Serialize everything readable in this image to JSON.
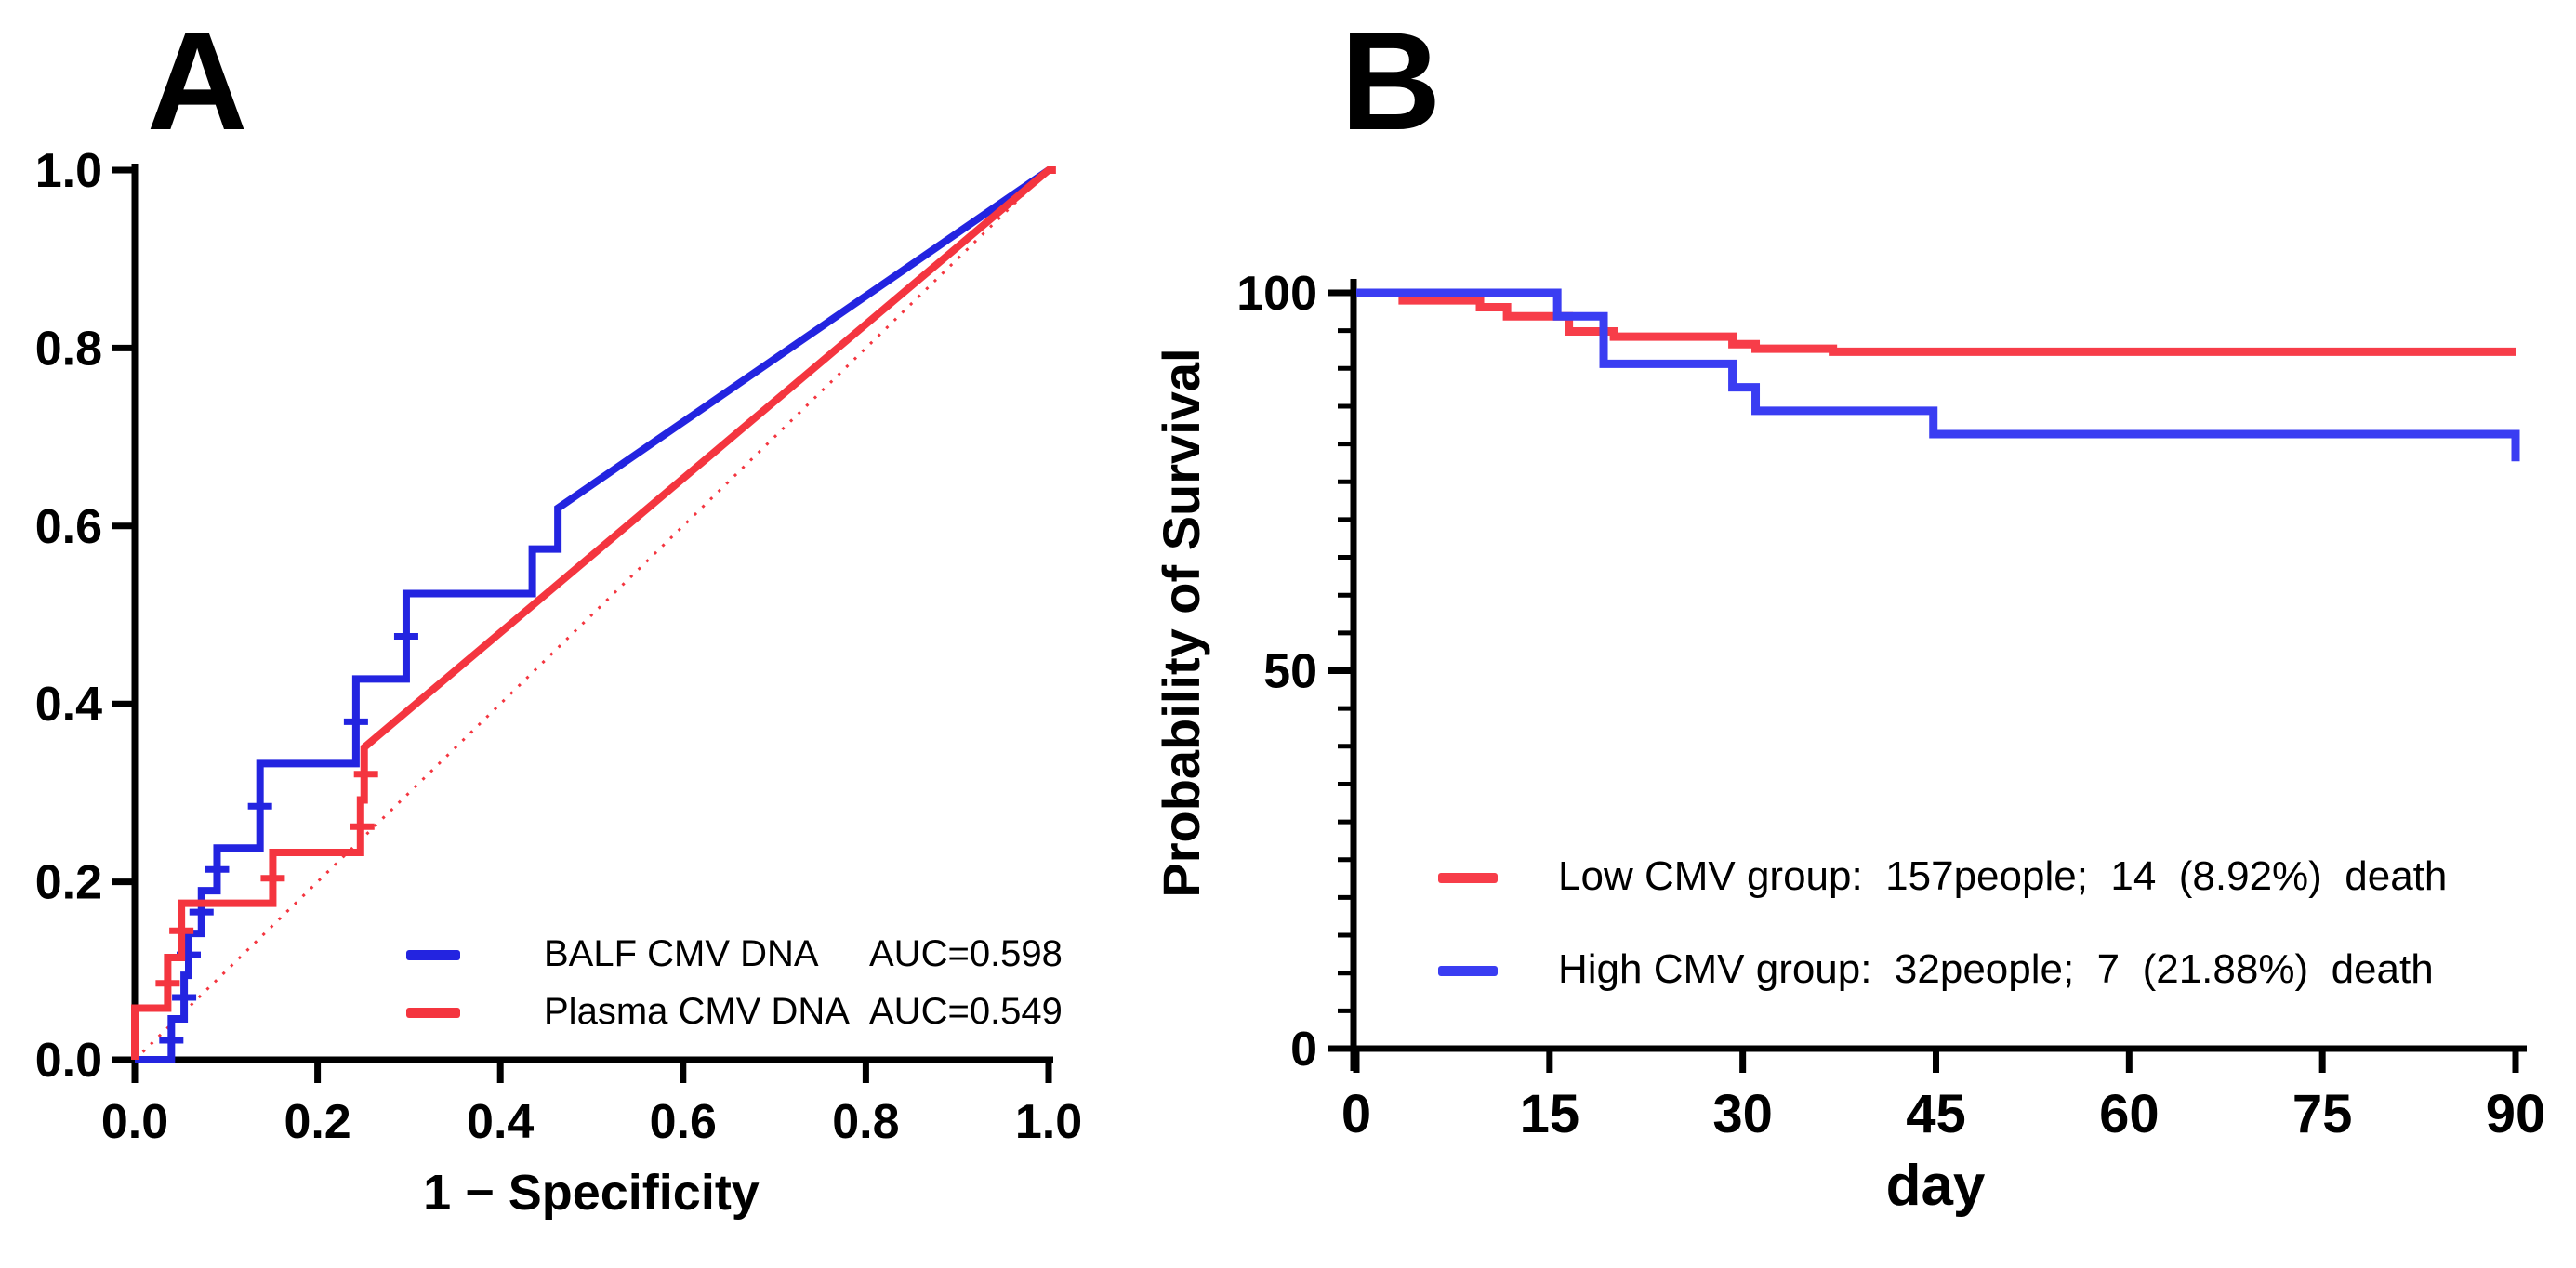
{
  "figure": {
    "background": "#ffffff"
  },
  "panel_a": {
    "letter": "A",
    "x_axis_title": "1 − Specificity",
    "x_tick_labels": [
      "0.0",
      "0.2",
      "0.4",
      "0.6",
      "0.8",
      "1.0"
    ],
    "y_tick_labels": [
      "0.0",
      "0.2",
      "0.4",
      "0.6",
      "0.8",
      "1.0"
    ],
    "legend": {
      "row1": {
        "label": "BALF CMV DNA",
        "auc": "AUC=0.598"
      },
      "row2": {
        "label": "Plasma CMV DNA",
        "auc": "AUC=0.549"
      }
    },
    "colors": {
      "balf": "#2324E0",
      "plasma": "#F4353F",
      "reference": "#F4353F"
    }
  },
  "panel_b": {
    "letter": "B",
    "x_axis_title": "day",
    "y_axis_title": "Probability of Survival",
    "x_tick_labels": [
      "0",
      "15",
      "30",
      "45",
      "60",
      "75",
      "90"
    ],
    "y_tick_labels": [
      "100",
      "50",
      "0"
    ],
    "legend": {
      "row1": "Low CMV group:  157people;  14  (8.92%)  death",
      "row2": "High CMV group:  32people;  7  (21.88%)  death"
    },
    "colors": {
      "low": "#F73D49",
      "high": "#3A3DF2"
    }
  },
  "chart_data": [
    {
      "type": "line",
      "panel": "A",
      "description": "ROC curves of BALF and Plasma CMV DNA",
      "xlabel": "1 − Specificity",
      "ylabel": "",
      "xlim": [
        0,
        1
      ],
      "ylim": [
        0,
        1
      ],
      "x_ticks": [
        0,
        0.2,
        0.4,
        0.6,
        0.8,
        1
      ],
      "y_ticks": [
        0,
        0.2,
        0.4,
        0.6,
        0.8,
        1
      ],
      "grid": false,
      "legend_position": "lower right",
      "series": [
        {
          "name": "BALF CMV DNA",
          "auc": 0.598,
          "color": "#2324E0",
          "style": "solid",
          "points": [
            [
              0,
              0
            ],
            [
              0.04,
              0
            ],
            [
              0.04,
              0.046
            ],
            [
              0.054,
              0.046
            ],
            [
              0.054,
              0.095
            ],
            [
              0.059,
              0.095
            ],
            [
              0.059,
              0.142
            ],
            [
              0.073,
              0.142
            ],
            [
              0.073,
              0.19
            ],
            [
              0.09,
              0.19
            ],
            [
              0.09,
              0.238
            ],
            [
              0.137,
              0.238
            ],
            [
              0.137,
              0.333
            ],
            [
              0.242,
              0.333
            ],
            [
              0.242,
              0.428
            ],
            [
              0.297,
              0.428
            ],
            [
              0.297,
              0.524
            ],
            [
              0.435,
              0.524
            ],
            [
              0.435,
              0.574
            ],
            [
              0.463,
              0.574
            ],
            [
              0.463,
              0.62
            ],
            [
              1,
              1
            ]
          ],
          "tie_marks": [
            [
              0.04,
              0.022
            ],
            [
              0.054,
              0.07
            ],
            [
              0.059,
              0.118
            ],
            [
              0.073,
              0.166
            ],
            [
              0.09,
              0.214
            ],
            [
              0.137,
              0.285
            ],
            [
              0.242,
              0.38
            ],
            [
              0.297,
              0.476
            ]
          ]
        },
        {
          "name": "Plasma CMV DNA",
          "auc": 0.549,
          "color": "#F4353F",
          "style": "solid",
          "points": [
            [
              0,
              0
            ],
            [
              0,
              0.058
            ],
            [
              0.036,
              0.058
            ],
            [
              0.036,
              0.115
            ],
            [
              0.051,
              0.115
            ],
            [
              0.051,
              0.176
            ],
            [
              0.151,
              0.176
            ],
            [
              0.151,
              0.233
            ],
            [
              0.247,
              0.233
            ],
            [
              0.247,
              0.292
            ],
            [
              0.251,
              0.292
            ],
            [
              0.251,
              0.351
            ],
            [
              0.259,
              0.358
            ],
            [
              1,
              1
            ],
            [
              1.008,
              1
            ]
          ],
          "tie_marks": [
            [
              0.036,
              0.086
            ],
            [
              0.051,
              0.145
            ],
            [
              0.151,
              0.204
            ],
            [
              0.249,
              0.262
            ],
            [
              0.253,
              0.321
            ]
          ]
        },
        {
          "name": "reference line",
          "color": "#F4353F",
          "style": "dotted",
          "points": [
            [
              0,
              0
            ],
            [
              1,
              1
            ]
          ],
          "tie_marks": []
        }
      ]
    },
    {
      "type": "line",
      "panel": "B",
      "description": "Kaplan-Meier survival by CMV group",
      "xlabel": "day",
      "ylabel": "Probability of Survival",
      "xlim": [
        0,
        90
      ],
      "ylim": [
        0,
        100
      ],
      "x_ticks": [
        0,
        15,
        30,
        45,
        60,
        75,
        90
      ],
      "y_major_ticks": [
        0,
        50,
        100
      ],
      "y_minor_step": 5,
      "grid": false,
      "legend_position": "lower left",
      "series": [
        {
          "name": "Low CMV group",
          "n": 157,
          "deaths": 14,
          "death_pct": "8.92%",
          "color": "#F73D49",
          "style": "solid",
          "points": [
            [
              0,
              100
            ],
            [
              3.6,
              100
            ],
            [
              3.6,
              99
            ],
            [
              9.6,
              99
            ],
            [
              9.6,
              98.1
            ],
            [
              11.7,
              98.1
            ],
            [
              11.7,
              96.9
            ],
            [
              16.5,
              96.9
            ],
            [
              16.5,
              94.9
            ],
            [
              20,
              94.9
            ],
            [
              20,
              94.2
            ],
            [
              29.2,
              94.2
            ],
            [
              29.2,
              93.2
            ],
            [
              31,
              93.2
            ],
            [
              31,
              92.6
            ],
            [
              37,
              92.6
            ],
            [
              37,
              92.2
            ],
            [
              90,
              92.2
            ]
          ]
        },
        {
          "name": "High CMV group",
          "n": 32,
          "deaths": 7,
          "death_pct": "21.88%",
          "color": "#3A3DF2",
          "style": "solid",
          "points": [
            [
              0,
              100
            ],
            [
              15.6,
              100
            ],
            [
              15.6,
              96.9
            ],
            [
              19.2,
              96.9
            ],
            [
              19.2,
              90.6
            ],
            [
              29.2,
              90.6
            ],
            [
              29.2,
              87.5
            ],
            [
              31,
              87.5
            ],
            [
              31,
              84.4
            ],
            [
              44.8,
              84.4
            ],
            [
              44.8,
              81.3
            ],
            [
              90,
              81.3
            ],
            [
              90,
              77.7
            ]
          ]
        }
      ]
    }
  ]
}
